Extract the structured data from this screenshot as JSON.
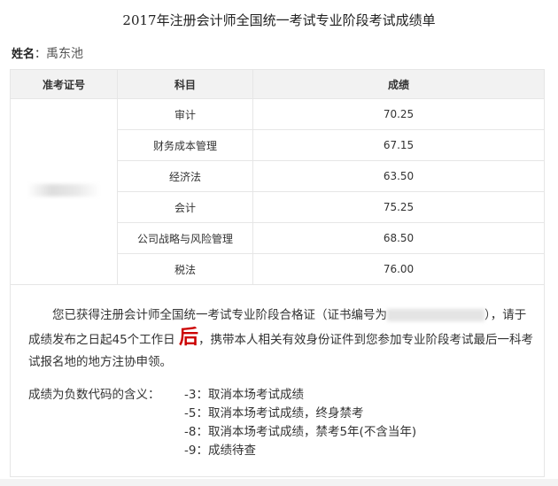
{
  "title": "2017年注册会计师全国统一考试专业阶段考试成绩单",
  "name_label": "姓名",
  "name_value": "禹东池",
  "table": {
    "headers": [
      "准考证号",
      "科目",
      "成绩"
    ],
    "rows": [
      {
        "subject": "审计",
        "score": "70.25"
      },
      {
        "subject": "财务成本管理",
        "score": "67.15"
      },
      {
        "subject": "经济法",
        "score": "63.50"
      },
      {
        "subject": "会计",
        "score": "75.25"
      },
      {
        "subject": "公司战略与风险管理",
        "score": "68.50"
      },
      {
        "subject": "税法",
        "score": "76.00"
      }
    ]
  },
  "notice": {
    "line1_start": "您已获得注册会计师全国统一考试专业阶段合格证（证书编号为",
    "line1_end": "），",
    "line2_start": "请于成绩发布之日起45个工作日",
    "line2_emph": "后",
    "line2_end": "，携带本人相关有效身份证件到您参加专业阶段考试最后一科考试报名地的地方注协申领。",
    "emph_color": "#cc0000"
  },
  "codes": {
    "label": "成绩为负数代码的含义：",
    "items": [
      "-3：取消本场考试成绩",
      "-5：取消本场考试成绩，终身禁考",
      "-8：取消本场考试成绩，禁考5年(不含当年)",
      "-9：成绩待查"
    ]
  }
}
